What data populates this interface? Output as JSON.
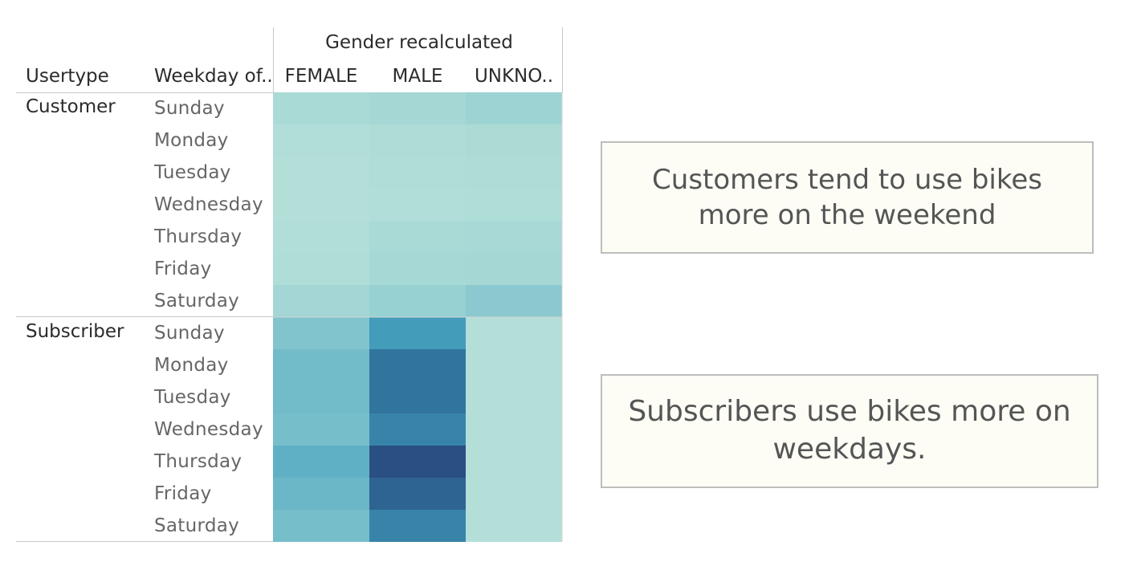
{
  "chart_data": {
    "type": "heatmap",
    "column_group_title": "Gender recalculated",
    "row_header_1": "Usertype",
    "row_header_2": "Weekday of..",
    "columns": [
      "FEMALE",
      "MALE",
      "UNKNO.."
    ],
    "groups": [
      {
        "usertype": "Customer",
        "rows": [
          "Sunday",
          "Monday",
          "Tuesday",
          "Wednesday",
          "Thursday",
          "Friday",
          "Saturday"
        ],
        "values": [
          [
            0.1,
            0.13,
            0.17
          ],
          [
            0.06,
            0.08,
            0.09
          ],
          [
            0.05,
            0.07,
            0.08
          ],
          [
            0.05,
            0.06,
            0.07
          ],
          [
            0.06,
            0.1,
            0.11
          ],
          [
            0.07,
            0.12,
            0.13
          ],
          [
            0.14,
            0.2,
            0.28
          ]
        ]
      },
      {
        "usertype": "Subscriber",
        "rows": [
          "Sunday",
          "Monday",
          "Tuesday",
          "Wednesday",
          "Thursday",
          "Friday",
          "Saturday"
        ],
        "values": [
          [
            0.33,
            0.62,
            0.05
          ],
          [
            0.4,
            0.82,
            0.05
          ],
          [
            0.4,
            0.82,
            0.05
          ],
          [
            0.38,
            0.74,
            0.05
          ],
          [
            0.48,
            1.0,
            0.05
          ],
          [
            0.43,
            0.9,
            0.05
          ],
          [
            0.38,
            0.74,
            0.05
          ]
        ]
      }
    ],
    "color_scale": [
      "#bce4da",
      "#2a4f82"
    ]
  },
  "annotations": {
    "customer": "Customers tend to use bikes more on the weekend",
    "subscriber": "Subscribers use bikes more on weekdays."
  }
}
